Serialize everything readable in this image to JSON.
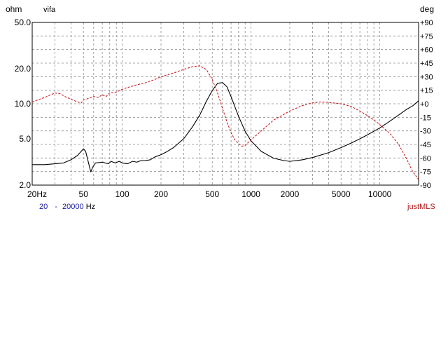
{
  "chart_data": {
    "type": "line",
    "left_unit": "ohm",
    "right_unit": "deg",
    "label": "vifa",
    "x_scale": "log",
    "xlim": [
      20,
      20000
    ],
    "x_ticks": [
      {
        "value": 20,
        "label": "20Hz"
      },
      {
        "value": 50,
        "label": "50"
      },
      {
        "value": 100,
        "label": "100"
      },
      {
        "value": 200,
        "label": "200"
      },
      {
        "value": 500,
        "label": "500"
      },
      {
        "value": 1000,
        "label": "1000"
      },
      {
        "value": 2000,
        "label": "2000"
      },
      {
        "value": 5000,
        "label": "5000"
      },
      {
        "value": 10000,
        "label": "10000"
      }
    ],
    "y_left_scale": "log",
    "ylim_left": [
      2,
      50
    ],
    "y_left_ticks": [
      {
        "value": 50,
        "label": "50.0"
      },
      {
        "value": 20,
        "label": "20.0"
      },
      {
        "value": 10,
        "label": "10.0"
      },
      {
        "value": 5,
        "label": "5.0"
      },
      {
        "value": 2,
        "label": "2.0"
      }
    ],
    "ylim_right": [
      -90,
      90
    ],
    "y_right_ticks": [
      {
        "value": 90,
        "label": "+90"
      },
      {
        "value": 75,
        "label": "+75"
      },
      {
        "value": 60,
        "label": "+60"
      },
      {
        "value": 45,
        "label": "+45"
      },
      {
        "value": 30,
        "label": "+30"
      },
      {
        "value": 15,
        "label": "+15"
      },
      {
        "value": 0,
        "label": "+0"
      },
      {
        "value": -15,
        "label": "-15"
      },
      {
        "value": -30,
        "label": "-30"
      },
      {
        "value": -45,
        "label": "-45"
      },
      {
        "value": -60,
        "label": "-60"
      },
      {
        "value": -75,
        "label": "-75"
      },
      {
        "value": -90,
        "label": "-90"
      }
    ],
    "grid": true,
    "range_label": {
      "start": "20",
      "dash": "-",
      "end": "20000",
      "unit": "Hz"
    },
    "brand": "justMLS",
    "series": [
      {
        "axis": "left",
        "color": "#000000",
        "style": "solid",
        "points": [
          [
            20,
            3.0
          ],
          [
            25,
            3.0
          ],
          [
            30,
            3.05
          ],
          [
            35,
            3.1
          ],
          [
            40,
            3.3
          ],
          [
            45,
            3.6
          ],
          [
            48,
            3.9
          ],
          [
            50,
            4.1
          ],
          [
            52,
            3.9
          ],
          [
            54,
            3.3
          ],
          [
            56,
            2.8
          ],
          [
            57,
            2.6
          ],
          [
            59,
            2.85
          ],
          [
            62,
            3.1
          ],
          [
            70,
            3.15
          ],
          [
            78,
            3.05
          ],
          [
            82,
            3.2
          ],
          [
            88,
            3.1
          ],
          [
            95,
            3.2
          ],
          [
            100,
            3.1
          ],
          [
            110,
            3.05
          ],
          [
            120,
            3.2
          ],
          [
            130,
            3.15
          ],
          [
            140,
            3.25
          ],
          [
            150,
            3.25
          ],
          [
            165,
            3.3
          ],
          [
            180,
            3.5
          ],
          [
            200,
            3.65
          ],
          [
            220,
            3.85
          ],
          [
            250,
            4.2
          ],
          [
            300,
            5.0
          ],
          [
            350,
            6.3
          ],
          [
            400,
            8.0
          ],
          [
            450,
            10.5
          ],
          [
            500,
            13.0
          ],
          [
            550,
            15.0
          ],
          [
            600,
            15.2
          ],
          [
            650,
            14.0
          ],
          [
            700,
            11.5
          ],
          [
            800,
            7.8
          ],
          [
            900,
            5.8
          ],
          [
            1000,
            4.8
          ],
          [
            1200,
            3.9
          ],
          [
            1500,
            3.4
          ],
          [
            1800,
            3.25
          ],
          [
            2000,
            3.2
          ],
          [
            2500,
            3.3
          ],
          [
            3000,
            3.45
          ],
          [
            4000,
            3.8
          ],
          [
            5000,
            4.2
          ],
          [
            6000,
            4.6
          ],
          [
            7000,
            5.0
          ],
          [
            8000,
            5.4
          ],
          [
            10000,
            6.2
          ],
          [
            12000,
            7.1
          ],
          [
            14000,
            8.0
          ],
          [
            16000,
            8.9
          ],
          [
            18000,
            9.6
          ],
          [
            20000,
            10.6
          ]
        ]
      },
      {
        "axis": "right",
        "color": "#c81e1e",
        "style": "dashed",
        "points": [
          [
            20,
            2
          ],
          [
            25,
            7
          ],
          [
            28,
            10
          ],
          [
            30,
            12
          ],
          [
            33,
            11
          ],
          [
            36,
            8
          ],
          [
            40,
            5
          ],
          [
            45,
            2
          ],
          [
            48,
            1
          ],
          [
            50,
            4
          ],
          [
            55,
            6
          ],
          [
            60,
            8
          ],
          [
            65,
            7
          ],
          [
            70,
            10
          ],
          [
            75,
            8
          ],
          [
            80,
            12
          ],
          [
            90,
            13
          ],
          [
            100,
            16
          ],
          [
            110,
            18
          ],
          [
            130,
            21
          ],
          [
            150,
            23
          ],
          [
            180,
            27
          ],
          [
            200,
            30
          ],
          [
            250,
            34
          ],
          [
            300,
            38
          ],
          [
            350,
            41
          ],
          [
            400,
            42
          ],
          [
            450,
            38
          ],
          [
            500,
            27
          ],
          [
            550,
            12
          ],
          [
            600,
            -5
          ],
          [
            650,
            -20
          ],
          [
            700,
            -32
          ],
          [
            750,
            -40
          ],
          [
            800,
            -44
          ],
          [
            850,
            -47
          ],
          [
            900,
            -46
          ],
          [
            1000,
            -40
          ],
          [
            1200,
            -30
          ],
          [
            1500,
            -18
          ],
          [
            2000,
            -8
          ],
          [
            2500,
            -2
          ],
          [
            3000,
            1
          ],
          [
            3500,
            2
          ],
          [
            4000,
            1.5
          ],
          [
            5000,
            0
          ],
          [
            6000,
            -3
          ],
          [
            7000,
            -8
          ],
          [
            8000,
            -13
          ],
          [
            9000,
            -18
          ],
          [
            10000,
            -23
          ],
          [
            12000,
            -33
          ],
          [
            14000,
            -45
          ],
          [
            16000,
            -60
          ],
          [
            18000,
            -75
          ],
          [
            20000,
            -84
          ]
        ]
      }
    ]
  }
}
